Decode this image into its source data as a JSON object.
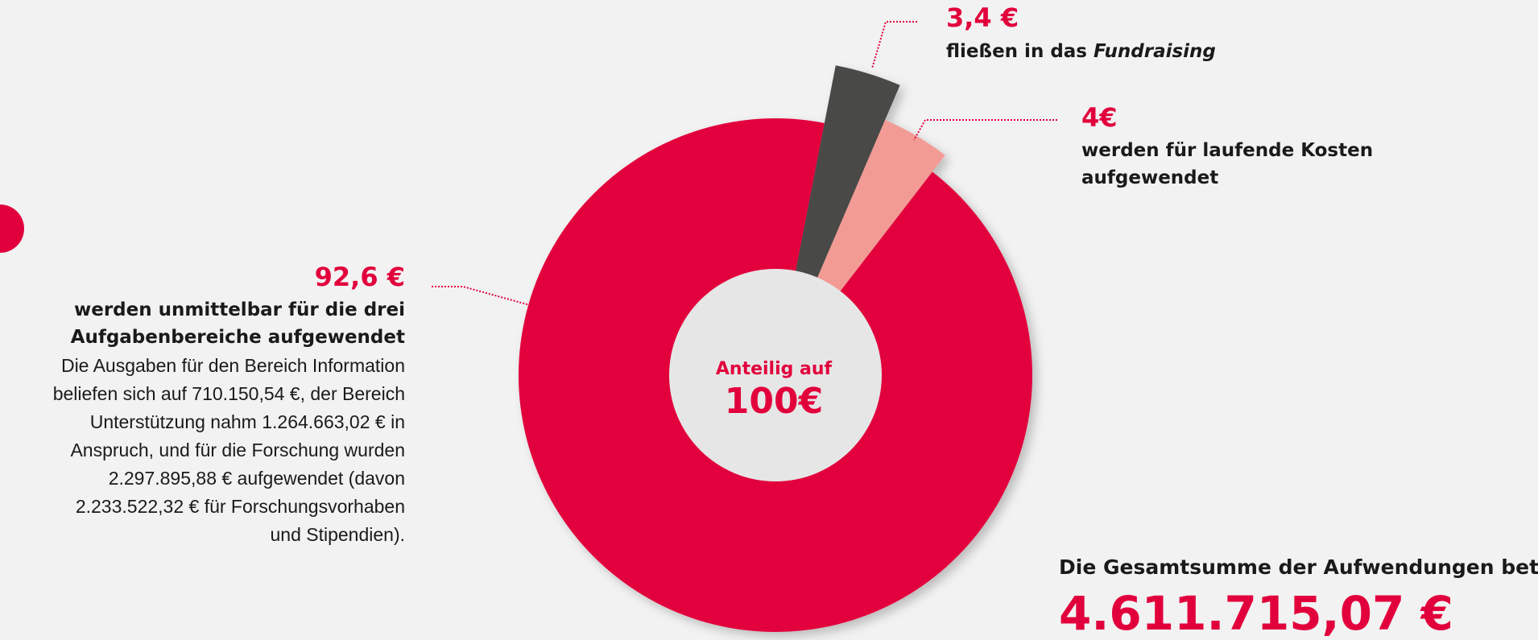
{
  "chart_data": {
    "type": "pie",
    "values": [
      3.4,
      4,
      92.6
    ],
    "value_labels": [
      "3,4 €",
      "4€",
      "92,6 €"
    ],
    "colors": [
      "#484846",
      "#f29b94",
      "#e2003c"
    ],
    "descriptions": [
      [
        "fließen in das",
        "Fundraising"
      ],
      [
        "werden für laufende Kosten",
        "aufgewendet"
      ],
      [
        "werden unmittelbar für die drei",
        "Aufgabenbereiche aufgewendet"
      ]
    ],
    "detail_lines": [
      "Die Ausgaben für den Bereich Information",
      "beliefen sich auf 710.150,54 €, der Bereich",
      "Unterstützung nahm 1.264.663,02 € in",
      "Anspruch, und für die Forschung wurden",
      "2.297.895,88 € aufgewendet (davon",
      "2.233.522,32 € für Forschungsvorhaben",
      "und Stipendien)."
    ],
    "center_label": "Anteilig auf",
    "center_value_label": "100€",
    "total_label": "Die Gesamtsumme der Aufwendungen betrug",
    "total_value_label": "4.611.715,07 €"
  }
}
